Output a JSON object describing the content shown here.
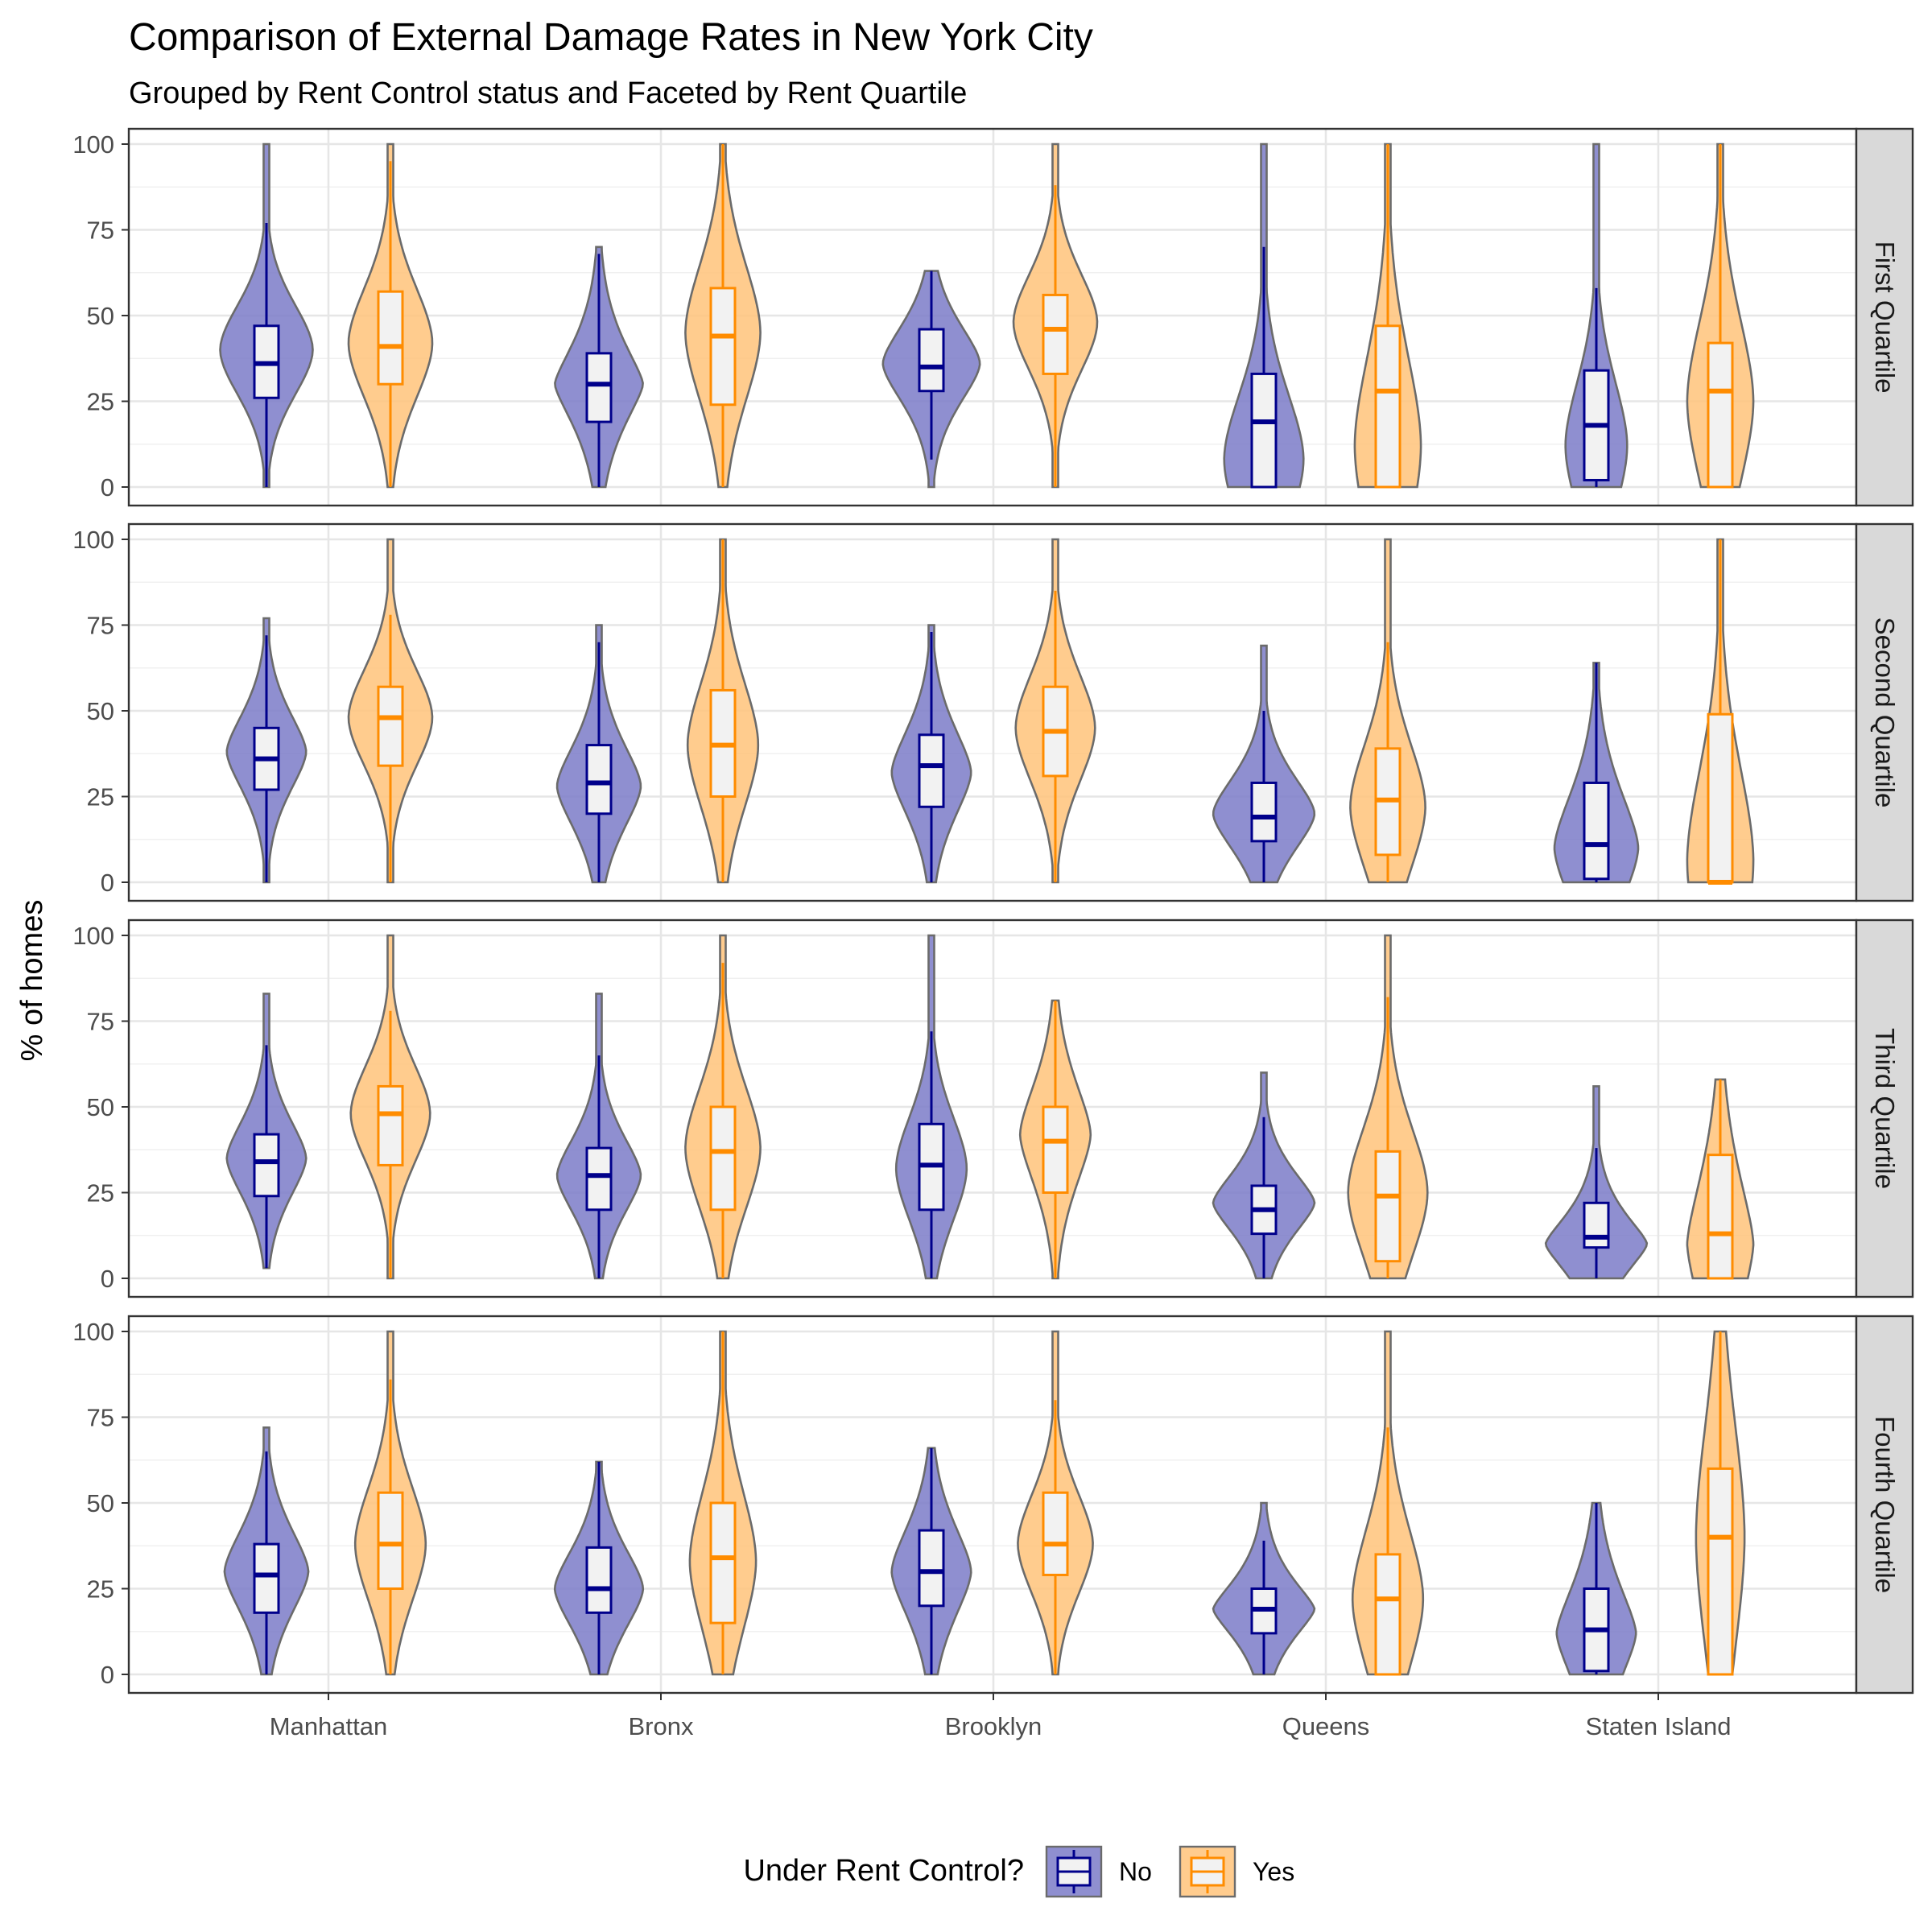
{
  "chart_data": {
    "type": "violin",
    "title": "Comparison of External Damage Rates in New York City",
    "subtitle": "Grouped by Rent Control status and Faceted by Rent Quartile",
    "ylabel": "% of homes",
    "xlabel": "",
    "ylim": [
      0,
      100
    ],
    "yticks": [
      0,
      25,
      50,
      75,
      100
    ],
    "categories": [
      "Manhattan",
      "Bronx",
      "Brooklyn",
      "Queens",
      "Staten Island"
    ],
    "legend": {
      "title": "Under Rent Control?",
      "position": "bottom",
      "items": [
        {
          "label": "No",
          "color": "#00008B",
          "fill": "#7B7BC8"
        },
        {
          "label": "Yes",
          "color": "#FF8C00",
          "fill": "#FFC37A"
        }
      ]
    },
    "facets": [
      {
        "label": "First Quartile",
        "series": {
          "No": [
            {
              "lo": 0,
              "q1": 26,
              "med": 36,
              "q3": 47,
              "hi": 77,
              "vmin": 0,
              "vmax": 100,
              "peak": 40,
              "maxw": 0.42,
              "ext": 1.8
            },
            {
              "lo": 0,
              "q1": 19,
              "med": 30,
              "q3": 39,
              "hi": 68,
              "vmin": 0,
              "vmax": 70,
              "peak": 30,
              "maxw": 0.4,
              "ext": 1.4
            },
            {
              "lo": 8,
              "q1": 28,
              "med": 35,
              "q3": 46,
              "hi": 63,
              "vmin": 0,
              "vmax": 63,
              "peak": 36,
              "maxw": 0.44,
              "ext": 1.6
            },
            {
              "lo": 0,
              "q1": 0,
              "med": 19,
              "q3": 33,
              "hi": 70,
              "vmin": 0,
              "vmax": 100,
              "peak": 8,
              "maxw": 0.36,
              "ext": 1.8
            },
            {
              "lo": 0,
              "q1": 2,
              "med": 18,
              "q3": 34,
              "hi": 58,
              "vmin": 0,
              "vmax": 100,
              "peak": 12,
              "maxw": 0.28,
              "ext": 1.8
            }
          ],
          "Yes": [
            {
              "lo": 0,
              "q1": 30,
              "med": 41,
              "q3": 57,
              "hi": 95,
              "vmin": 0,
              "vmax": 100,
              "peak": 42,
              "maxw": 0.38,
              "ext": 1.8
            },
            {
              "lo": 0,
              "q1": 24,
              "med": 44,
              "q3": 58,
              "hi": 100,
              "vmin": 0,
              "vmax": 100,
              "peak": 45,
              "maxw": 0.34,
              "ext": 1.8
            },
            {
              "lo": 0,
              "q1": 33,
              "med": 46,
              "q3": 56,
              "hi": 88,
              "vmin": 0,
              "vmax": 100,
              "peak": 48,
              "maxw": 0.38,
              "ext": 1.8
            },
            {
              "lo": 0,
              "q1": 0,
              "med": 28,
              "q3": 47,
              "hi": 100,
              "vmin": 0,
              "vmax": 100,
              "peak": 12,
              "maxw": 0.3,
              "ext": 1.8
            },
            {
              "lo": 0,
              "q1": 0,
              "med": 28,
              "q3": 42,
              "hi": 100,
              "vmin": 0,
              "vmax": 100,
              "peak": 25,
              "maxw": 0.3,
              "ext": 1.8
            }
          ]
        }
      },
      {
        "label": "Second Quartile",
        "series": {
          "No": [
            {
              "lo": 0,
              "q1": 27,
              "med": 36,
              "q3": 45,
              "hi": 72,
              "vmin": 0,
              "vmax": 77,
              "peak": 38,
              "maxw": 0.36,
              "ext": 1.6
            },
            {
              "lo": 0,
              "q1": 20,
              "med": 29,
              "q3": 40,
              "hi": 70,
              "vmin": 0,
              "vmax": 75,
              "peak": 28,
              "maxw": 0.38,
              "ext": 1.6
            },
            {
              "lo": 0,
              "q1": 22,
              "med": 34,
              "q3": 43,
              "hi": 73,
              "vmin": 0,
              "vmax": 75,
              "peak": 32,
              "maxw": 0.36,
              "ext": 1.6
            },
            {
              "lo": 0,
              "q1": 12,
              "med": 19,
              "q3": 29,
              "hi": 50,
              "vmin": 0,
              "vmax": 69,
              "peak": 20,
              "maxw": 0.46,
              "ext": 1.6
            },
            {
              "lo": 0,
              "q1": 1,
              "med": 11,
              "q3": 29,
              "hi": 64,
              "vmin": 0,
              "vmax": 64,
              "peak": 10,
              "maxw": 0.38,
              "ext": 1.6
            }
          ],
          "Yes": [
            {
              "lo": 0,
              "q1": 34,
              "med": 48,
              "q3": 57,
              "hi": 78,
              "vmin": 0,
              "vmax": 100,
              "peak": 48,
              "maxw": 0.38,
              "ext": 1.8
            },
            {
              "lo": 0,
              "q1": 25,
              "med": 40,
              "q3": 56,
              "hi": 100,
              "vmin": 0,
              "vmax": 100,
              "peak": 40,
              "maxw": 0.32,
              "ext": 1.8
            },
            {
              "lo": 0,
              "q1": 31,
              "med": 44,
              "q3": 57,
              "hi": 85,
              "vmin": 0,
              "vmax": 100,
              "peak": 45,
              "maxw": 0.36,
              "ext": 1.8
            },
            {
              "lo": 0,
              "q1": 8,
              "med": 24,
              "q3": 39,
              "hi": 70,
              "vmin": 0,
              "vmax": 100,
              "peak": 22,
              "maxw": 0.34,
              "ext": 1.8
            },
            {
              "lo": 0,
              "q1": 0,
              "med": 0,
              "q3": 49,
              "hi": 100,
              "vmin": 0,
              "vmax": 100,
              "peak": 6,
              "maxw": 0.3,
              "ext": 1.8
            }
          ]
        }
      },
      {
        "label": "Third Quartile",
        "series": {
          "No": [
            {
              "lo": 3,
              "q1": 24,
              "med": 34,
              "q3": 42,
              "hi": 68,
              "vmin": 3,
              "vmax": 83,
              "peak": 35,
              "maxw": 0.36,
              "ext": 1.6
            },
            {
              "lo": 0,
              "q1": 20,
              "med": 30,
              "q3": 38,
              "hi": 65,
              "vmin": 0,
              "vmax": 83,
              "peak": 30,
              "maxw": 0.38,
              "ext": 1.6
            },
            {
              "lo": 0,
              "q1": 20,
              "med": 33,
              "q3": 45,
              "hi": 72,
              "vmin": 0,
              "vmax": 100,
              "peak": 32,
              "maxw": 0.32,
              "ext": 1.8
            },
            {
              "lo": 0,
              "q1": 13,
              "med": 20,
              "q3": 27,
              "hi": 47,
              "vmin": 0,
              "vmax": 60,
              "peak": 22,
              "maxw": 0.46,
              "ext": 1.5
            },
            {
              "lo": 0,
              "q1": 9,
              "med": 12,
              "q3": 22,
              "hi": 38,
              "vmin": 0,
              "vmax": 56,
              "peak": 10,
              "maxw": 0.46,
              "ext": 1.4
            }
          ],
          "Yes": [
            {
              "lo": 0,
              "q1": 33,
              "med": 48,
              "q3": 56,
              "hi": 78,
              "vmin": 0,
              "vmax": 100,
              "peak": 48,
              "maxw": 0.36,
              "ext": 1.8
            },
            {
              "lo": 0,
              "q1": 20,
              "med": 37,
              "q3": 50,
              "hi": 92,
              "vmin": 0,
              "vmax": 100,
              "peak": 38,
              "maxw": 0.34,
              "ext": 1.8
            },
            {
              "lo": 0,
              "q1": 25,
              "med": 40,
              "q3": 50,
              "hi": 81,
              "vmin": 0,
              "vmax": 81,
              "peak": 42,
              "maxw": 0.32,
              "ext": 1.6
            },
            {
              "lo": 0,
              "q1": 5,
              "med": 24,
              "q3": 37,
              "hi": 82,
              "vmin": 0,
              "vmax": 100,
              "peak": 25,
              "maxw": 0.36,
              "ext": 1.8
            },
            {
              "lo": 0,
              "q1": 0,
              "med": 13,
              "q3": 36,
              "hi": 58,
              "vmin": 0,
              "vmax": 58,
              "peak": 10,
              "maxw": 0.3,
              "ext": 1.5
            }
          ]
        }
      },
      {
        "label": "Fourth Quartile",
        "series": {
          "No": [
            {
              "lo": 0,
              "q1": 18,
              "med": 29,
              "q3": 38,
              "hi": 65,
              "vmin": 0,
              "vmax": 72,
              "peak": 30,
              "maxw": 0.38,
              "ext": 1.6
            },
            {
              "lo": 0,
              "q1": 18,
              "med": 25,
              "q3": 37,
              "hi": 62,
              "vmin": 0,
              "vmax": 62,
              "peak": 25,
              "maxw": 0.4,
              "ext": 1.6
            },
            {
              "lo": 0,
              "q1": 20,
              "med": 30,
              "q3": 42,
              "hi": 66,
              "vmin": 0,
              "vmax": 66,
              "peak": 30,
              "maxw": 0.36,
              "ext": 1.6
            },
            {
              "lo": 0,
              "q1": 12,
              "med": 19,
              "q3": 25,
              "hi": 39,
              "vmin": 0,
              "vmax": 50,
              "peak": 19,
              "maxw": 0.46,
              "ext": 1.4
            },
            {
              "lo": 0,
              "q1": 1,
              "med": 13,
              "q3": 25,
              "hi": 50,
              "vmin": 0,
              "vmax": 50,
              "peak": 12,
              "maxw": 0.36,
              "ext": 1.5
            }
          ],
          "Yes": [
            {
              "lo": 0,
              "q1": 25,
              "med": 38,
              "q3": 53,
              "hi": 86,
              "vmin": 0,
              "vmax": 100,
              "peak": 38,
              "maxw": 0.32,
              "ext": 1.8
            },
            {
              "lo": 0,
              "q1": 15,
              "med": 34,
              "q3": 50,
              "hi": 100,
              "vmin": 0,
              "vmax": 100,
              "peak": 33,
              "maxw": 0.3,
              "ext": 1.8
            },
            {
              "lo": 0,
              "q1": 29,
              "med": 38,
              "q3": 53,
              "hi": 80,
              "vmin": 0,
              "vmax": 100,
              "peak": 38,
              "maxw": 0.34,
              "ext": 1.8
            },
            {
              "lo": 0,
              "q1": 0,
              "med": 22,
              "q3": 35,
              "hi": 72,
              "vmin": 0,
              "vmax": 100,
              "peak": 22,
              "maxw": 0.32,
              "ext": 1.8
            },
            {
              "lo": 0,
              "q1": 0,
              "med": 40,
              "q3": 60,
              "hi": 100,
              "vmin": 0,
              "vmax": 100,
              "peak": 40,
              "maxw": 0.22,
              "ext": 1.8
            }
          ]
        }
      }
    ]
  }
}
